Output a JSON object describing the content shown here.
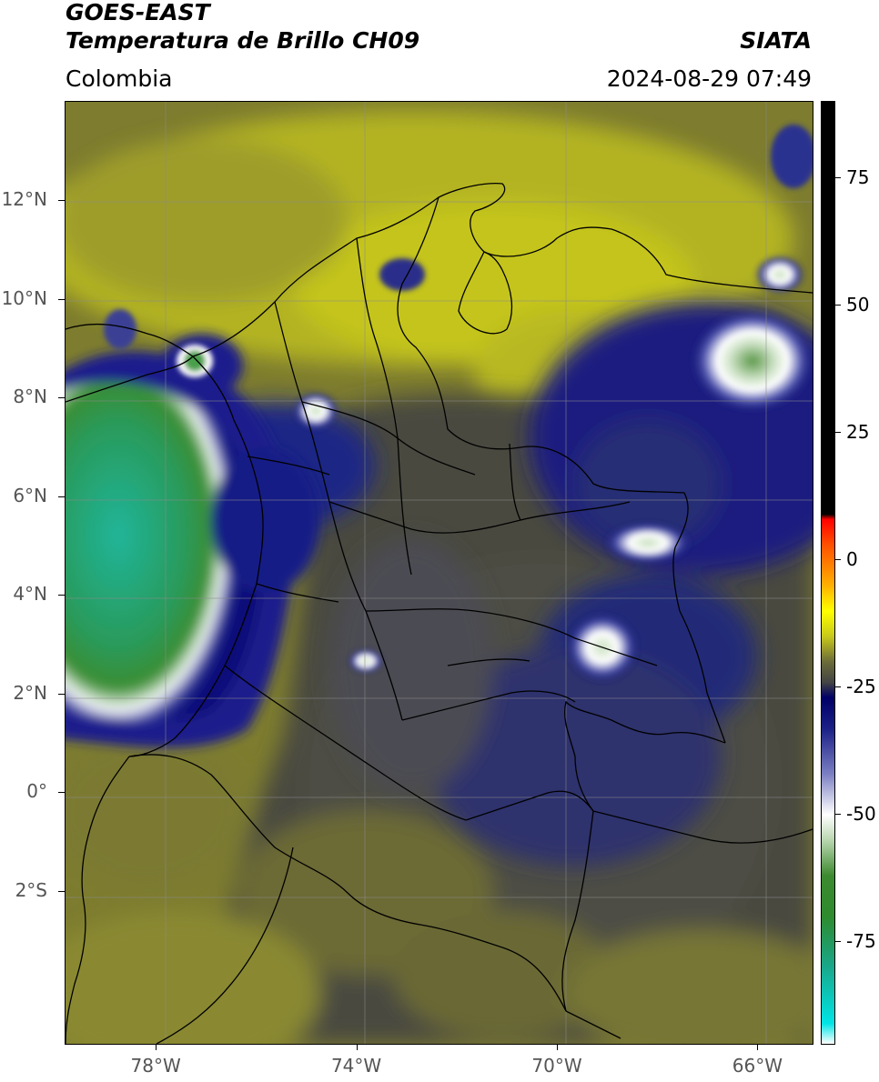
{
  "header": {
    "title_line1": "GOES-EAST",
    "title_line2": "Temperatura de Brillo CH09",
    "brand": "SIATA",
    "region": "Colombia",
    "datetime": "2024-08-29 07:49"
  },
  "map": {
    "lat_ticks": [
      {
        "label": "12°N",
        "value": 12
      },
      {
        "label": "10°N",
        "value": 10
      },
      {
        "label": "8°N",
        "value": 8
      },
      {
        "label": "6°N",
        "value": 6
      },
      {
        "label": "4°N",
        "value": 4
      },
      {
        "label": "2°N",
        "value": 2
      },
      {
        "label": "0°",
        "value": 0
      },
      {
        "label": "2°S",
        "value": -2
      }
    ],
    "lon_ticks": [
      {
        "label": "78°W",
        "value": -78
      },
      {
        "label": "74°W",
        "value": -74
      },
      {
        "label": "70°W",
        "value": -70
      },
      {
        "label": "66°W",
        "value": -66
      }
    ],
    "lon_range": [
      -79.8,
      -64.9
    ],
    "lat_range": [
      -5.1,
      14.0
    ],
    "gridlines": true
  },
  "colorbar": {
    "range": [
      -95,
      90
    ],
    "ticks": [
      {
        "label": "75",
        "value": 75
      },
      {
        "label": "50",
        "value": 50
      },
      {
        "label": "25",
        "value": 25
      },
      {
        "label": "0",
        "value": 0
      },
      {
        "label": "-25",
        "value": -25
      },
      {
        "label": "-50",
        "value": -50
      },
      {
        "label": "-75",
        "value": -75
      }
    ],
    "stops": [
      {
        "value": -95,
        "color": "#ffffff"
      },
      {
        "value": -91,
        "color": "#00e5e5"
      },
      {
        "value": -80,
        "color": "#18a88c"
      },
      {
        "value": -70,
        "color": "#2e8b2e"
      },
      {
        "value": -62,
        "color": "#3d8a2f"
      },
      {
        "value": -55,
        "color": "#b9d6b0"
      },
      {
        "value": -50,
        "color": "#ffffff"
      },
      {
        "value": -42,
        "color": "#7b7fc2"
      },
      {
        "value": -33,
        "color": "#1a1f86"
      },
      {
        "value": -27,
        "color": "#000066"
      },
      {
        "value": -24,
        "color": "#444444"
      },
      {
        "value": -20,
        "color": "#6b6b3a"
      },
      {
        "value": -15,
        "color": "#c7c81a"
      },
      {
        "value": -10,
        "color": "#ffff00"
      },
      {
        "value": -5,
        "color": "#ffb000"
      },
      {
        "value": 3,
        "color": "#ff5000"
      },
      {
        "value": 8,
        "color": "#ff0000"
      },
      {
        "value": 9,
        "color": "#000000"
      },
      {
        "value": 90,
        "color": "#000000"
      }
    ]
  }
}
